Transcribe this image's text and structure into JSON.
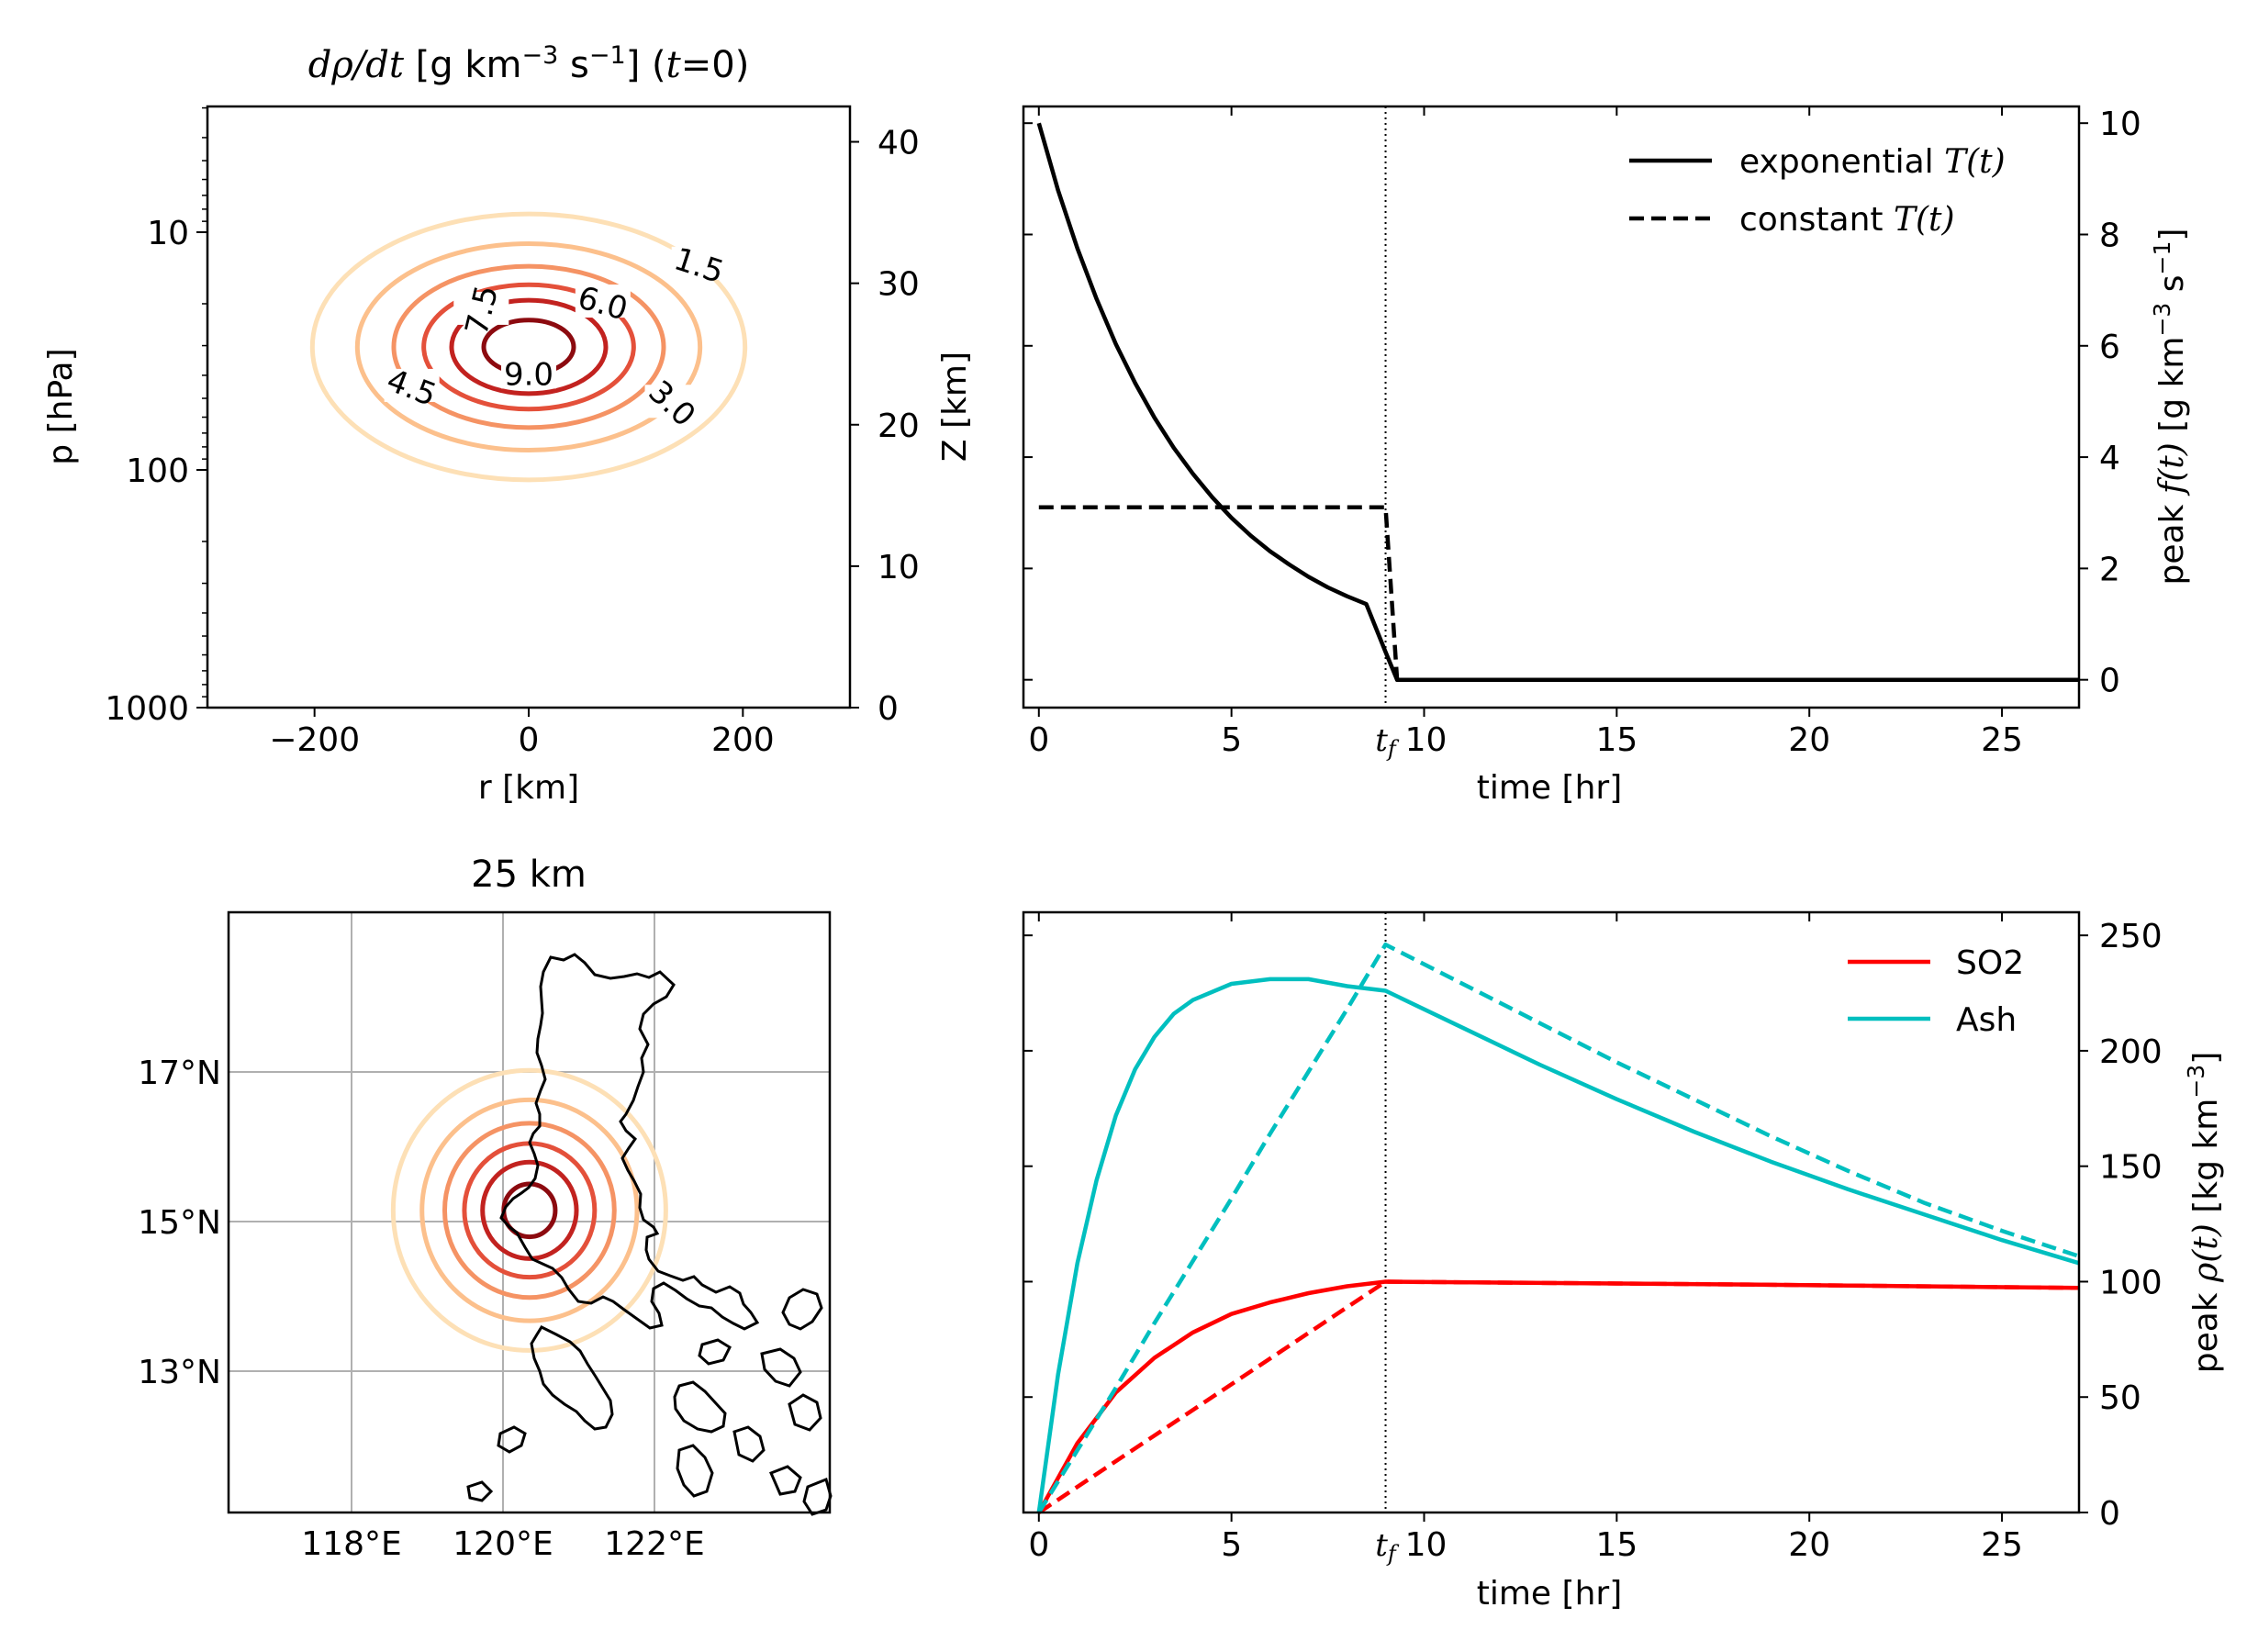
{
  "chart_data": [
    {
      "id": "contour",
      "type": "contour",
      "title": "dρ/dt [g km⁻³ s⁻¹] (t=0)",
      "title_parts": {
        "quantity": "dρ/dt",
        "units_pre": " [g km",
        "units_exp1": "−3",
        "units_mid": " s",
        "units_exp2": "−1",
        "units_post": "] (",
        "tvar": "t",
        "tail": "=0)"
      },
      "xlabel": "r [km]",
      "ylabel_left": "p [hPa]",
      "ylabel_right": "Z [km]",
      "xlim": [
        -300,
        300
      ],
      "x_ticks": [
        -200,
        0,
        200
      ],
      "x_tick_labels": [
        "−200",
        "0",
        "200"
      ],
      "p_ticks": [
        10,
        100,
        1000
      ],
      "p_tick_labels": [
        "10",
        "100",
        "1000"
      ],
      "z_ticks": [
        0,
        10,
        20,
        30,
        40
      ],
      "z_tick_labels": [
        "0",
        "10",
        "20",
        "30",
        "40"
      ],
      "zlim": [
        0,
        42.5
      ],
      "center": {
        "r": 0,
        "z": 25.5
      },
      "levels": [
        1.5,
        3.0,
        4.5,
        6.0,
        7.5,
        9.0
      ],
      "level_labels": [
        "1.5",
        "3.0",
        "4.5",
        "6.0",
        "7.5",
        "9.0"
      ],
      "level_colors": [
        "#fde0b6",
        "#fcc08c",
        "#f59364",
        "#e4503a",
        "#c2221f",
        "#8c0a0f"
      ],
      "semi_axes_r_km": [
        202,
        160,
        126,
        98,
        72,
        42
      ],
      "semi_axes_z_km": [
        9.4,
        7.3,
        5.7,
        4.4,
        3.3,
        1.9
      ]
    },
    {
      "id": "source-time",
      "type": "line",
      "xlabel": "time [hr]",
      "ylabel_right": "peak f(t) [g km⁻³ s⁻¹]",
      "ylabel_parts": {
        "pre": "peak ",
        "fn": "f(t)",
        "units_pre": " [g km",
        "units_exp1": "−3",
        "units_mid": " s",
        "units_exp2": "−1",
        "units_post": "]"
      },
      "xlim": [
        -0.4,
        27
      ],
      "ylim": [
        -0.5,
        10.3
      ],
      "x_ticks": [
        0,
        5,
        10,
        15,
        20,
        25
      ],
      "x_tick_labels": [
        "0",
        "5",
        "10",
        "15",
        "20",
        "25"
      ],
      "y_ticks": [
        0,
        2,
        4,
        6,
        8,
        10
      ],
      "y_tick_labels": [
        "0",
        "2",
        "4",
        "6",
        "8",
        "10"
      ],
      "tf": 9.0,
      "tf_label": "t_f",
      "series": [
        {
          "name": "exponential T(t)",
          "legend_pre": "exponential ",
          "legend_fn": "T(t)",
          "style": "solid",
          "color": "#000000",
          "x": [
            0,
            0.5,
            1,
            1.5,
            2,
            2.5,
            3,
            3.5,
            4,
            4.5,
            5,
            5.5,
            6,
            6.5,
            7,
            7.5,
            8,
            8.5,
            9,
            9.3,
            27
          ],
          "y": [
            10.0,
            8.79,
            7.75,
            6.84,
            6.03,
            5.33,
            4.71,
            4.17,
            3.7,
            3.28,
            2.91,
            2.59,
            2.31,
            2.07,
            1.85,
            1.66,
            1.5,
            1.36,
            0.5,
            0,
            0
          ]
        },
        {
          "name": "constant T(t)",
          "legend_pre": "constant ",
          "legend_fn": "T(t)",
          "style": "dashed",
          "color": "#000000",
          "x": [
            0,
            9.0,
            9.3,
            27
          ],
          "y": [
            3.1,
            3.1,
            0,
            0
          ]
        }
      ],
      "legend": "top-right"
    },
    {
      "id": "map",
      "type": "map",
      "title": "25 km",
      "lon_range": [
        116.3,
        124.3
      ],
      "lat_range": [
        11.1,
        19.1
      ],
      "lon_ticks": [
        118,
        120,
        122
      ],
      "lon_tick_labels": [
        "118°E",
        "120°E",
        "122°E"
      ],
      "lat_ticks": [
        13,
        15,
        17
      ],
      "lat_tick_labels": [
        "13°N",
        "15°N",
        "17°N"
      ],
      "grid": true,
      "center": {
        "lon": 120.35,
        "lat": 15.15
      },
      "ring_colors": [
        "#fde0b6",
        "#fcc08c",
        "#f59364",
        "#e4503a",
        "#c2221f",
        "#8c0a0f"
      ],
      "ring_radii_deg": [
        1.8,
        1.42,
        1.12,
        0.86,
        0.62,
        0.34
      ]
    },
    {
      "id": "density",
      "type": "line",
      "xlabel": "time [hr]",
      "ylabel_right": "peak ρ(t) [kg km⁻³]",
      "ylabel_parts": {
        "pre": "peak ",
        "fn": "ρ(t)",
        "units_pre": " [kg km",
        "units_exp1": "−3",
        "units_post": "]"
      },
      "xlim": [
        -0.4,
        27
      ],
      "ylim": [
        0,
        260
      ],
      "x_ticks": [
        0,
        5,
        10,
        15,
        20,
        25
      ],
      "x_tick_labels": [
        "0",
        "5",
        "10",
        "15",
        "20",
        "25"
      ],
      "y_ticks": [
        0,
        50,
        100,
        150,
        200,
        250
      ],
      "y_tick_labels": [
        "0",
        "50",
        "100",
        "150",
        "200",
        "250"
      ],
      "tf": 9.0,
      "tf_label": "t_f",
      "legend_entries": [
        {
          "name": "SO2",
          "color": "#ff0000"
        },
        {
          "name": "Ash",
          "color": "#00bfbf"
        }
      ],
      "series": [
        {
          "name": "SO2",
          "style": "solid",
          "color": "#ff0000",
          "x": [
            0,
            1,
            2,
            3,
            4,
            5,
            6,
            7,
            8,
            9,
            12,
            15,
            18,
            21,
            24,
            27
          ],
          "y": [
            0,
            30,
            52,
            67,
            78,
            86,
            91,
            95,
            98,
            100,
            99.6,
            99.2,
            98.8,
            98.3,
            97.8,
            97.3
          ]
        },
        {
          "name": "SO2",
          "style": "dashed",
          "color": "#ff0000",
          "x": [
            0,
            9,
            12,
            15,
            18,
            21,
            24,
            27
          ],
          "y": [
            0,
            100,
            99.6,
            99.2,
            98.8,
            98.3,
            97.8,
            97.3
          ]
        },
        {
          "name": "Ash",
          "style": "solid",
          "color": "#00bfbf",
          "x": [
            0,
            0.5,
            1,
            1.5,
            2,
            2.5,
            3,
            3.5,
            4,
            5,
            6,
            7,
            8,
            9,
            11,
            13,
            15,
            17,
            19,
            21,
            23,
            25,
            27
          ],
          "y": [
            0,
            60,
            108,
            144,
            172,
            192,
            206,
            216,
            222,
            229,
            231,
            231,
            228,
            226,
            210,
            194,
            179,
            165,
            152,
            140,
            129,
            118,
            108
          ]
        },
        {
          "name": "Ash",
          "style": "dashed",
          "color": "#00bfbf",
          "x": [
            0,
            1,
            2,
            3,
            4,
            5,
            6,
            7,
            8,
            9,
            11,
            13,
            15,
            17,
            19,
            21,
            23,
            25,
            27
          ],
          "y": [
            0,
            27,
            54,
            82,
            109,
            136,
            164,
            191,
            218,
            246,
            229,
            212,
            195,
            179,
            163,
            148,
            134,
            122,
            111
          ]
        }
      ],
      "legend": "top-right"
    }
  ]
}
